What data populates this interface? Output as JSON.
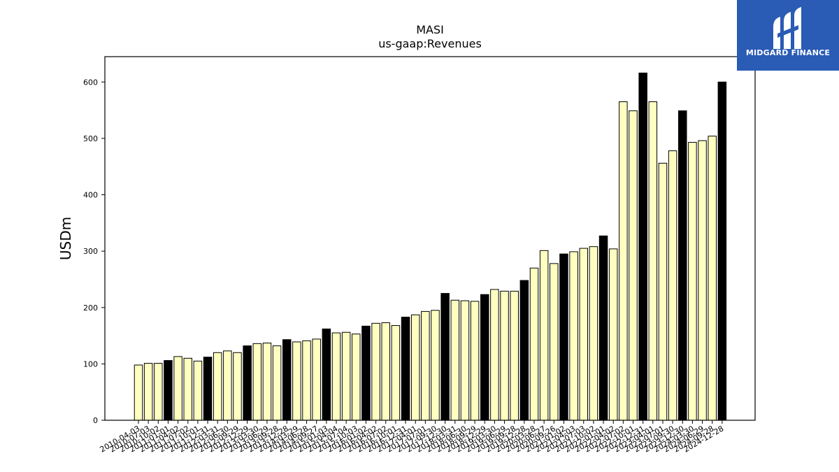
{
  "brand": {
    "name": "MIDGARD FINANCE",
    "logo_icon": "midgard-monogram-icon",
    "background_color": "#2a5bb5"
  },
  "chart_data": {
    "type": "bar",
    "title": "MASI",
    "subtitle": "us-gaap:Revenues",
    "xlabel": "",
    "ylabel": "USDm",
    "ylim": [
      0,
      645
    ],
    "yticks": [
      0,
      100,
      200,
      300,
      400,
      500,
      600
    ],
    "grid": false,
    "colors": {
      "quarter": "#ffffc0",
      "fiscal_year_end": "#000000"
    },
    "categories": [
      "2010-04-03",
      "2010-07-03",
      "2010-10-02",
      "2011-01-01",
      "2011-04-02",
      "2011-07-02",
      "2011-10-01",
      "2011-12-31",
      "2012-03-31",
      "2012-06-30",
      "2012-09-29",
      "2012-12-29",
      "2013-03-30",
      "2013-06-29",
      "2013-09-28",
      "2013-12-28",
      "2014-03-29",
      "2014-06-28",
      "2014-09-27",
      "2015-01-03",
      "2015-04-04",
      "2015-07-04",
      "2015-10-03",
      "2016-01-02",
      "2016-04-02",
      "2016-07-02",
      "2016-10-01",
      "2016-12-31",
      "2017-04-01",
      "2017-07-01",
      "2017-09-30",
      "2017-12-30",
      "2018-03-31",
      "2018-06-30",
      "2018-09-29",
      "2018-12-29",
      "2019-03-30",
      "2019-06-29",
      "2019-09-28",
      "2019-12-28",
      "2020-03-28",
      "2020-06-27",
      "2020-09-26",
      "2021-01-02",
      "2021-04-03",
      "2021-07-03",
      "2021-10-02",
      "2022-01-01",
      "2022-04-02",
      "2022-07-02",
      "2022-10-01",
      "2022-12-31",
      "2023-04-01",
      "2023-07-01",
      "2023-09-30",
      "2023-12-30",
      "2024-03-30",
      "2024-06-29",
      "2024-09-28",
      "2024-12-28"
    ],
    "values": [
      98,
      101,
      101,
      106,
      113,
      110,
      105,
      112,
      120,
      123,
      120,
      132,
      136,
      137,
      132,
      143,
      139,
      141,
      144,
      162,
      155,
      156,
      153,
      167,
      172,
      173,
      168,
      183,
      187,
      193,
      195,
      225,
      213,
      212,
      211,
      223,
      232,
      229,
      229,
      248,
      270,
      301,
      278,
      295,
      299,
      305,
      308,
      327,
      304,
      565,
      549,
      616,
      565,
      456,
      478,
      549,
      493,
      496,
      504,
      600
    ],
    "fiscal_year_end": [
      false,
      false,
      false,
      true,
      false,
      false,
      false,
      true,
      false,
      false,
      false,
      true,
      false,
      false,
      false,
      true,
      false,
      false,
      false,
      true,
      false,
      false,
      false,
      true,
      false,
      false,
      false,
      true,
      false,
      false,
      false,
      true,
      false,
      false,
      false,
      true,
      false,
      false,
      false,
      true,
      false,
      false,
      false,
      true,
      false,
      false,
      false,
      true,
      false,
      false,
      false,
      true,
      false,
      false,
      false,
      true,
      false,
      false,
      false,
      true
    ]
  }
}
